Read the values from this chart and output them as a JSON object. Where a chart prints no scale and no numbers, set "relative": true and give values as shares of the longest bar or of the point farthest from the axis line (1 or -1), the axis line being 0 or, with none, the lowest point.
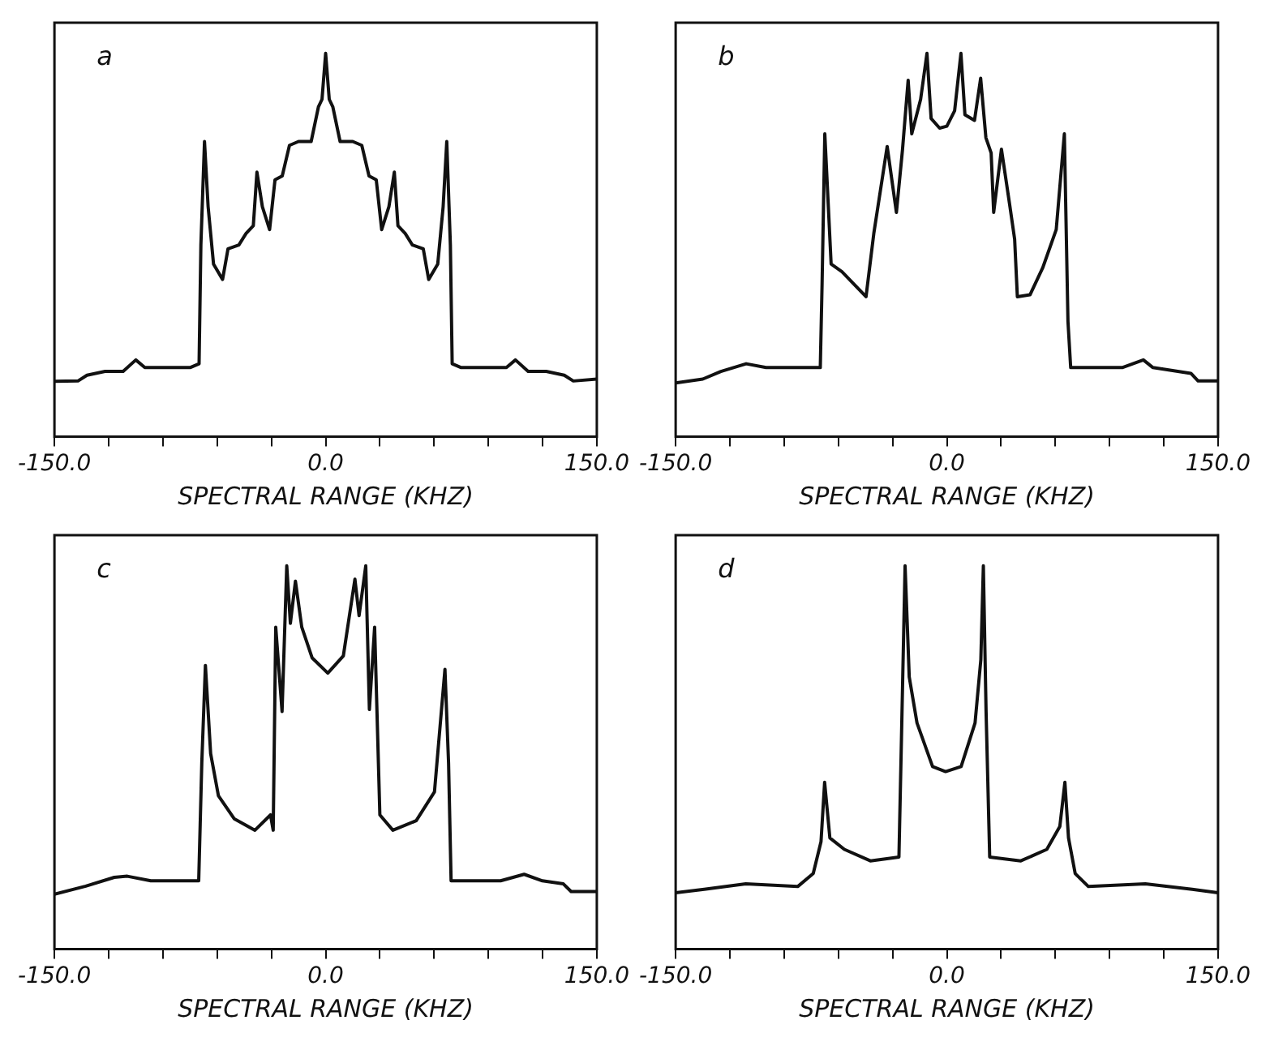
{
  "chart_data": [
    {
      "type": "line",
      "relative": true,
      "xlabel": "SPECTRAL RANGE (KHZ)",
      "annotations": [
        "a"
      ],
      "xlim": [
        -150,
        150
      ],
      "xticks": [
        {
          "value": -150,
          "label": "-150.0"
        },
        {
          "value": -120,
          "label": null
        },
        {
          "value": -90,
          "label": null
        },
        {
          "value": -60,
          "label": null
        },
        {
          "value": -30,
          "label": null
        },
        {
          "value": 0,
          "label": "0.0"
        },
        {
          "value": 30,
          "label": null
        },
        {
          "value": 60,
          "label": null
        },
        {
          "value": 90,
          "label": null
        },
        {
          "value": 120,
          "label": null
        },
        {
          "value": 150,
          "label": "150.0"
        }
      ],
      "x": [
        -150,
        -137,
        -132,
        -122,
        -112,
        -105,
        -100,
        -85,
        -75,
        -70,
        -69,
        -67,
        -65,
        -62,
        -57,
        -54,
        -48,
        -44,
        -40,
        -38,
        -35,
        -31,
        -28,
        -24,
        -20,
        -15,
        -8,
        -4,
        -2,
        0,
        2,
        4,
        8,
        15,
        20,
        24,
        28,
        31,
        35,
        38,
        40,
        44,
        48,
        54,
        57,
        62,
        65,
        67,
        69,
        70,
        75,
        85,
        100,
        105,
        112,
        122,
        132,
        137,
        150
      ],
      "series": [
        {
          "color": "#111111",
          "values": [
            0.144,
            0.145,
            0.16,
            0.17,
            0.17,
            0.2,
            0.18,
            0.18,
            0.18,
            0.19,
            0.5,
            0.77,
            0.6,
            0.45,
            0.41,
            0.49,
            0.5,
            0.53,
            0.55,
            0.69,
            0.6,
            0.54,
            0.67,
            0.68,
            0.76,
            0.77,
            0.77,
            0.86,
            0.88,
            1.0,
            0.88,
            0.86,
            0.77,
            0.77,
            0.76,
            0.68,
            0.67,
            0.54,
            0.6,
            0.69,
            0.55,
            0.53,
            0.5,
            0.49,
            0.41,
            0.45,
            0.6,
            0.77,
            0.5,
            0.19,
            0.18,
            0.18,
            0.18,
            0.2,
            0.17,
            0.17,
            0.16,
            0.145,
            0.15
          ]
        }
      ]
    },
    {
      "type": "line",
      "relative": true,
      "xlabel": "SPECTRAL RANGE (KHZ)",
      "annotations": [
        "b"
      ],
      "xlim": [
        -150,
        150
      ],
      "xticks": [
        {
          "value": -150,
          "label": "-150.0"
        },
        {
          "value": -120,
          "label": null
        },
        {
          "value": -90,
          "label": null
        },
        {
          "value": -60,
          "label": null
        },
        {
          "value": -30,
          "label": null
        },
        {
          "value": 0,
          "label": "0.0"
        },
        {
          "value": 30,
          "label": null
        },
        {
          "value": 60,
          "label": null
        },
        {
          "value": 90,
          "label": null
        },
        {
          "value": 120,
          "label": null
        },
        {
          "value": 150,
          "label": "150.0"
        }
      ],
      "x": [
        -150,
        -135,
        -125,
        -111,
        -100,
        -70,
        -69,
        -67.5,
        -64,
        -58,
        -44.7,
        -40.4,
        -33,
        -27.9,
        -24.5,
        -21.4,
        -19.4,
        -14.5,
        -11,
        -8.7,
        -4,
        0,
        4.3,
        7.8,
        10,
        15.3,
        18.7,
        21.6,
        24.5,
        25.9,
        30.2,
        34.6,
        37.5,
        39,
        46,
        53,
        60.5,
        65,
        67,
        68.5,
        97,
        108.7,
        114,
        135,
        139,
        150
      ],
      "series": [
        {
          "color": "#111111",
          "values": [
            0.14,
            0.15,
            0.17,
            0.19,
            0.18,
            0.18,
            0.4,
            0.79,
            0.45,
            0.43,
            0.365,
            0.53,
            0.757,
            0.585,
            0.75,
            0.93,
            0.79,
            0.88,
            1.0,
            0.83,
            0.805,
            0.81,
            0.85,
            1.0,
            0.84,
            0.825,
            0.935,
            0.78,
            0.74,
            0.585,
            0.75,
            0.61,
            0.515,
            0.365,
            0.37,
            0.44,
            0.54,
            0.79,
            0.3,
            0.18,
            0.18,
            0.2,
            0.18,
            0.165,
            0.145,
            0.145
          ]
        }
      ]
    },
    {
      "type": "line",
      "relative": true,
      "xlabel": "SPECTRAL RANGE (KHZ)",
      "annotations": [
        "c"
      ],
      "xlim": [
        -150,
        150
      ],
      "xticks": [
        {
          "value": -150,
          "label": "-150.0"
        },
        {
          "value": -120,
          "label": null
        },
        {
          "value": -90,
          "label": null
        },
        {
          "value": -60,
          "label": null
        },
        {
          "value": -30,
          "label": null
        },
        {
          "value": 0,
          "label": "0.0"
        },
        {
          "value": 30,
          "label": null
        },
        {
          "value": 60,
          "label": null
        },
        {
          "value": 90,
          "label": null
        },
        {
          "value": 120,
          "label": null
        },
        {
          "value": 150,
          "label": "150.0"
        }
      ],
      "x": [
        -150,
        -132.7,
        -116.9,
        -109.7,
        -96.7,
        -70.2,
        -68.5,
        -66.5,
        -63.6,
        -59.3,
        -50.6,
        -39.1,
        -30.5,
        -29,
        -27.6,
        -24.1,
        -21.5,
        -19.5,
        -16.7,
        -13.2,
        -7.5,
        1.2,
        9.8,
        16.2,
        18.5,
        22.2,
        24.2,
        27.1,
        30,
        37.2,
        50.1,
        60.2,
        66,
        68,
        69.4,
        96.8,
        109.8,
        119.9,
        131.5,
        135.8,
        150
      ],
      "series": [
        {
          "color": "#111111",
          "values": [
            0.143,
            0.164,
            0.187,
            0.19,
            0.178,
            0.178,
            0.485,
            0.74,
            0.51,
            0.4,
            0.34,
            0.31,
            0.35,
            0.31,
            0.84,
            0.62,
            1.0,
            0.85,
            0.96,
            0.84,
            0.76,
            0.72,
            0.765,
            0.965,
            0.87,
            1.0,
            0.625,
            0.84,
            0.35,
            0.31,
            0.335,
            0.41,
            0.73,
            0.485,
            0.178,
            0.178,
            0.195,
            0.178,
            0.17,
            0.15,
            0.15
          ]
        }
      ]
    },
    {
      "type": "line",
      "relative": true,
      "xlabel": "SPECTRAL RANGE (KHZ)",
      "annotations": [
        "d"
      ],
      "xlim": [
        -150,
        150
      ],
      "xticks": [
        {
          "value": -150,
          "label": "-150.0"
        },
        {
          "value": -120,
          "label": null
        },
        {
          "value": -90,
          "label": null
        },
        {
          "value": -60,
          "label": null
        },
        {
          "value": -30,
          "label": null
        },
        {
          "value": 0,
          "label": "0.0"
        },
        {
          "value": 30,
          "label": null
        },
        {
          "value": 60,
          "label": null
        },
        {
          "value": 90,
          "label": null
        },
        {
          "value": 120,
          "label": null
        },
        {
          "value": 150,
          "label": "150.0"
        }
      ],
      "x": [
        -150,
        -134.2,
        -111.2,
        -82.5,
        -73.9,
        -69.6,
        -67.6,
        -64.7,
        -56.7,
        -42.3,
        -26.5,
        -25.1,
        -23.1,
        -20.8,
        -16.5,
        -7.9,
        -0.7,
        7.9,
        15.6,
        18.8,
        20.2,
        21.7,
        23.7,
        40.9,
        55.3,
        62.5,
        65.3,
        67.3,
        71,
        78.3,
        109.8,
        135.7,
        150
      ],
      "series": [
        {
          "color": "#111111",
          "values": [
            0.147,
            0.156,
            0.17,
            0.163,
            0.197,
            0.28,
            0.435,
            0.29,
            0.26,
            0.23,
            0.24,
            0.55,
            1.0,
            0.71,
            0.59,
            0.476,
            0.463,
            0.476,
            0.59,
            0.755,
            1.0,
            0.62,
            0.24,
            0.23,
            0.26,
            0.32,
            0.435,
            0.29,
            0.197,
            0.163,
            0.17,
            0.156,
            0.147
          ]
        }
      ]
    }
  ]
}
